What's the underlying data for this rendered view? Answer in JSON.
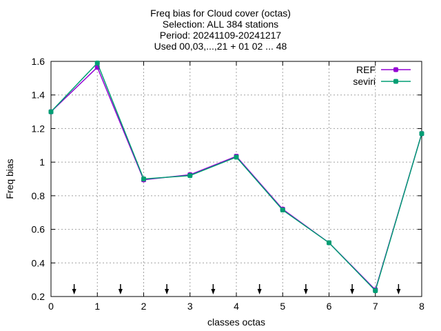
{
  "chart_data": {
    "type": "line",
    "title_lines": [
      "Freq bias  for Cloud cover (octas)",
      "Selection: ALL    384 stations",
      "Period: 20241109-20241217",
      "Used 00,03,...,21 + 01 02 ... 48"
    ],
    "xlabel": "classes octas",
    "ylabel": "Freq bias",
    "xlim": [
      0,
      8
    ],
    "ylim": [
      0.2,
      1.6
    ],
    "xticks": [
      "0",
      "1",
      "2",
      "3",
      "4",
      "5",
      "6",
      "7",
      "8"
    ],
    "yticks": [
      "0.2",
      "0.4",
      "0.6",
      "0.8",
      "1",
      "1.2",
      "1.4",
      "1.6"
    ],
    "grid": true,
    "legend_position": "top-right",
    "x": [
      0,
      1,
      2,
      3,
      4,
      5,
      6,
      7,
      8
    ],
    "series": [
      {
        "name": "REF",
        "color": "#9400d3",
        "values": [
          1.3,
          1.565,
          0.895,
          0.925,
          1.035,
          0.72,
          0.52,
          0.24,
          1.17
        ]
      },
      {
        "name": "seviri",
        "color": "#009e73",
        "values": [
          1.3,
          1.59,
          0.9,
          0.92,
          1.03,
          0.715,
          0.52,
          0.235,
          1.17
        ]
      }
    ],
    "arrow_markers_x": [
      0.5,
      1.5,
      2.5,
      3.5,
      4.5,
      5.5,
      6.5,
      7.5
    ]
  }
}
